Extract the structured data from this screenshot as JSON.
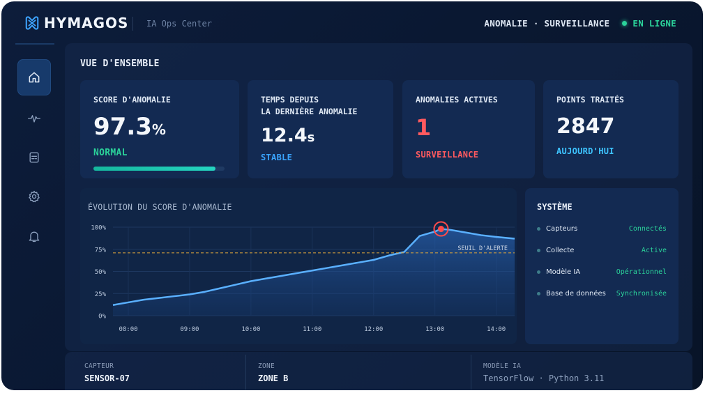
{
  "header": {
    "brand": "HYMAGOS",
    "app_name": "IA Ops Center",
    "links": "ANOMALIE · SURVEILLANCE",
    "status": "EN LIGNE"
  },
  "sidebar": {
    "items": [
      {
        "icon": "home-icon",
        "active": true
      },
      {
        "icon": "pulse-icon",
        "active": false
      },
      {
        "icon": "report-icon",
        "active": false
      },
      {
        "icon": "gear-icon",
        "active": false
      },
      {
        "icon": "bell-icon",
        "active": false
      }
    ]
  },
  "overview": {
    "title": "VUE D'ENSEMBLE",
    "cards": [
      {
        "label": "SCORE D'ANOMALIE",
        "value": "97.3",
        "unit": "%",
        "status": "NORMAL",
        "status_color": "#2bd29a",
        "progress": 0.93
      },
      {
        "label_line1": "TEMPS DEPUIS",
        "label_line2": "LA DERNIÈRE ANOMALIE",
        "value": "12.4",
        "unit": "s",
        "status": "STABLE",
        "status_color": "#3aa5ff"
      },
      {
        "label": "ANOMALIES ACTIVES",
        "value": "1",
        "status": "SURVEILLANCE",
        "status_color": "#ff5a5f"
      },
      {
        "label": "POINTS TRAITÉS",
        "value": "2847",
        "status": "AUJOURD'HUI",
        "status_color": "#3ec4ff"
      }
    ]
  },
  "chart": {
    "title": "ÉVOLUTION DU SCORE D'ANOMALIE",
    "threshold_label": "SEUIL D'ALERTE"
  },
  "chart_data": {
    "type": "area",
    "title": "ÉVOLUTION DU SCORE D'ANOMALIE",
    "x_ticks": [
      "08:00",
      "09:00",
      "10:00",
      "11:00",
      "12:00",
      "13:00",
      "14:00"
    ],
    "y_ticks": [
      "100%",
      "75%",
      "50%",
      "25%",
      "0%"
    ],
    "ylim": [
      0,
      100
    ],
    "x_range_hours": [
      7.75,
      14.3
    ],
    "threshold": {
      "label": "SEUIL D'ALERTE",
      "value": 71
    },
    "series": [
      {
        "x": [
          7.75,
          8.0,
          8.25,
          8.5,
          8.75,
          9.0,
          9.25,
          9.5,
          9.75,
          10.0,
          10.25,
          10.5,
          10.75,
          11.0,
          11.25,
          11.5,
          11.75,
          12.0,
          12.25,
          12.5,
          12.75,
          13.0,
          13.1,
          13.25,
          13.5,
          13.75,
          14.0,
          14.3
        ],
        "y": [
          12,
          15,
          18,
          20,
          22,
          24,
          27,
          31,
          35,
          39,
          42,
          45,
          48,
          51,
          54,
          57,
          60,
          63,
          68,
          72,
          90,
          95,
          98,
          97,
          94,
          91,
          89,
          87
        ]
      }
    ],
    "highlight": {
      "x": 13.1,
      "y": 98
    },
    "grid": true
  },
  "system": {
    "title": "SYSTÈME",
    "rows": [
      {
        "label": "Capteurs",
        "value": "Connectés"
      },
      {
        "label": "Collecte",
        "value": "Active"
      },
      {
        "label": "Modèle IA",
        "value": "Opérationnel"
      },
      {
        "label": "Base de données",
        "value": "Synchronisée"
      }
    ]
  },
  "footer": {
    "sensor_label": "CAPTEUR",
    "sensor_value": "SENSOR-07",
    "zone_label": "ZONE",
    "zone_value": "ZONE B",
    "model_label": "MODÈLE IA",
    "model_value": "TensorFlow · Python 3.11"
  },
  "colors": {
    "accent_green": "#2bd29a",
    "accent_blue": "#3aa5ff",
    "alert_red": "#ff5a5f",
    "threshold": "#e0a63a"
  }
}
